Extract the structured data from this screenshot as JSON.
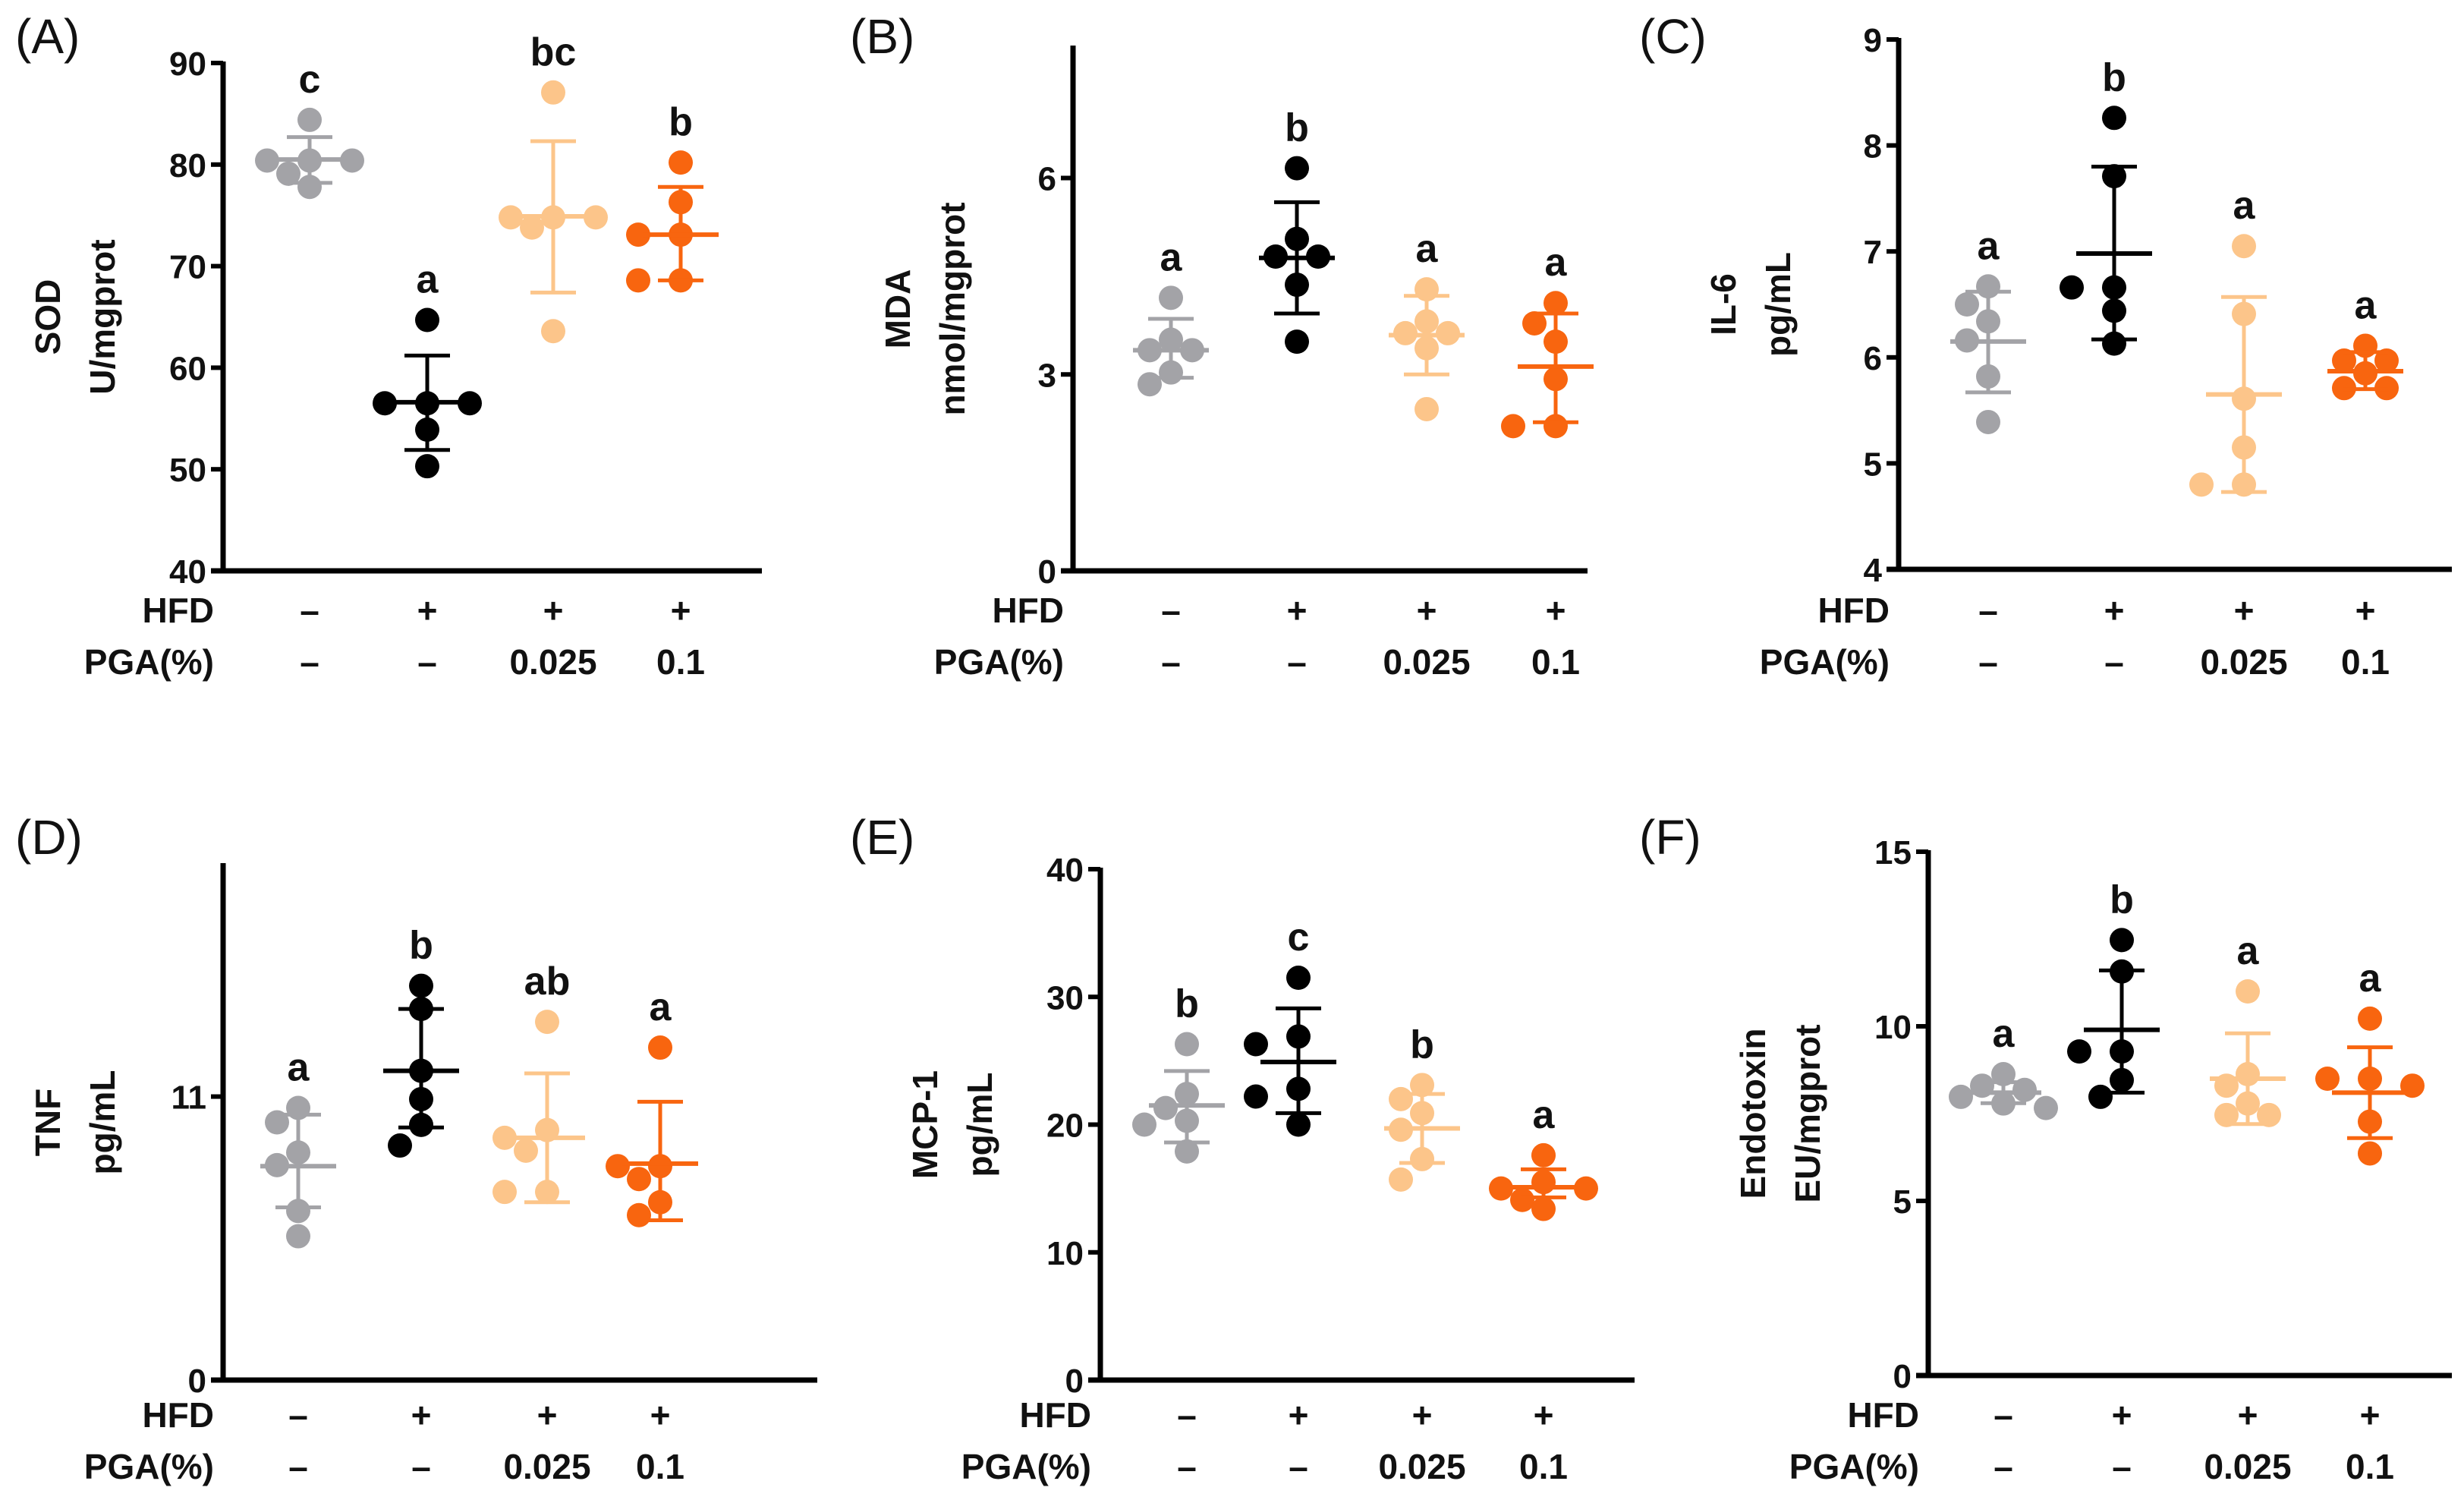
{
  "group_colors": [
    "#a3a3a7",
    "#000000",
    "#fcc58a",
    "#f8650f"
  ],
  "row_labels": {
    "hfd": "HFD",
    "pga": "PGA(%)"
  },
  "hfd_values": [
    "–",
    "+",
    "+",
    "+"
  ],
  "pga_values": [
    "–",
    "–",
    "0.025",
    "0.1"
  ],
  "chart_data": [
    {
      "type": "scatter",
      "panel_label": "(A)",
      "ylabel": [
        "SOD",
        "U/mgprot"
      ],
      "ylim": [
        40,
        90
      ],
      "yticks": [
        40,
        50,
        60,
        70,
        80,
        90
      ],
      "groups": [
        {
          "points": [
            84.4,
            80.4,
            80.4,
            80.4,
            79.1,
            77.8
          ],
          "mean": 80.5,
          "err": [
            78.2,
            82.7
          ],
          "letter": "c"
        },
        {
          "points": [
            64.7,
            56.5,
            56.5,
            56.5,
            53.9,
            50.3
          ],
          "mean": 56.6,
          "err": [
            51.9,
            61.2
          ],
          "letter": "a"
        },
        {
          "points": [
            87.1,
            74.8,
            74.8,
            74.8,
            73.8,
            63.6
          ],
          "mean": 74.9,
          "err": [
            67.4,
            82.3
          ],
          "letter": "bc"
        },
        {
          "points": [
            80.2,
            76.3,
            73.1,
            73.1,
            68.6,
            68.6
          ],
          "mean": 73.1,
          "err": [
            68.6,
            77.8
          ],
          "letter": "b"
        }
      ]
    },
    {
      "type": "scatter",
      "panel_label": "(B)",
      "ylabel": [
        "MDA",
        "nmol/mgprot"
      ],
      "ylim": [
        0,
        8
      ],
      "yticks": [
        0,
        3,
        6
      ],
      "groups": [
        {
          "points": [
            4.17,
            3.53,
            3.37,
            3.37,
            3.03,
            2.85
          ],
          "mean": 3.37,
          "err": [
            2.95,
            3.85
          ],
          "letter": "a"
        },
        {
          "points": [
            6.15,
            5.07,
            4.8,
            4.8,
            4.37,
            3.5
          ],
          "mean": 4.78,
          "err": [
            3.93,
            5.63
          ],
          "letter": "b"
        },
        {
          "points": [
            4.3,
            3.81,
            3.63,
            3.63,
            3.4,
            2.47
          ],
          "mean": 3.6,
          "err": [
            3.0,
            4.2
          ],
          "letter": "a"
        },
        {
          "points": [
            4.09,
            3.78,
            3.5,
            2.93,
            2.21,
            2.21
          ],
          "mean": 3.12,
          "err": [
            2.27,
            3.93
          ],
          "letter": "a"
        }
      ]
    },
    {
      "type": "scatter",
      "panel_label": "(C)",
      "ylabel": [
        "IL-6",
        "pg/mL"
      ],
      "ylim": [
        4,
        9
      ],
      "yticks": [
        4,
        5,
        6,
        7,
        8,
        9
      ],
      "groups": [
        {
          "points": [
            6.67,
            6.5,
            6.34,
            6.16,
            5.82,
            5.39
          ],
          "mean": 6.15,
          "err": [
            5.67,
            6.62
          ],
          "letter": "a"
        },
        {
          "points": [
            8.26,
            7.71,
            6.66,
            6.66,
            6.44,
            6.13
          ],
          "mean": 6.98,
          "err": [
            6.17,
            7.8
          ],
          "letter": "b"
        },
        {
          "points": [
            7.05,
            6.41,
            5.61,
            5.15,
            4.8,
            4.8
          ],
          "mean": 5.65,
          "err": [
            4.73,
            6.57
          ],
          "letter": "a"
        },
        {
          "points": [
            6.11,
            5.97,
            5.97,
            5.85,
            5.71,
            5.71
          ],
          "mean": 5.87,
          "err": [
            5.7,
            6.05
          ],
          "letter": "a"
        }
      ]
    },
    {
      "type": "scatter",
      "panel_label": "(D)",
      "ylabel": [
        "TNF",
        "pg/mL"
      ],
      "ylim": [
        0,
        20
      ],
      "yticks": [
        0,
        11
      ],
      "groups": [
        {
          "points": [
            10.56,
            10.0,
            8.83,
            8.34,
            6.56,
            5.58
          ],
          "mean": 8.3,
          "err": [
            6.7,
            10.3
          ],
          "letter": "a"
        },
        {
          "points": [
            15.3,
            14.4,
            12.0,
            10.9,
            9.9,
            9.1
          ],
          "mean": 12.0,
          "err": [
            9.8,
            14.4
          ],
          "letter": "b"
        },
        {
          "points": [
            13.9,
            9.7,
            9.4,
            8.9,
            7.3,
            7.3
          ],
          "mean": 9.4,
          "err": [
            6.9,
            11.9
          ],
          "letter": "ab"
        },
        {
          "points": [
            12.9,
            8.3,
            8.3,
            7.8,
            6.9,
            6.4
          ],
          "mean": 8.4,
          "err": [
            6.2,
            10.8
          ],
          "letter": "a"
        }
      ]
    },
    {
      "type": "scatter",
      "panel_label": "(E)",
      "ylabel": [
        "MCP-1",
        "pg/mL"
      ],
      "ylim": [
        0,
        40
      ],
      "yticks": [
        0,
        10,
        20,
        30,
        40
      ],
      "groups": [
        {
          "points": [
            26.3,
            22.4,
            21.3,
            20.3,
            20.0,
            17.9
          ],
          "mean": 21.5,
          "err": [
            18.6,
            24.2
          ],
          "letter": "b"
        },
        {
          "points": [
            31.5,
            26.9,
            26.3,
            22.8,
            22.2,
            20.0
          ],
          "mean": 24.9,
          "err": [
            20.9,
            29.1
          ],
          "letter": "c"
        },
        {
          "points": [
            23.1,
            22.0,
            20.9,
            19.6,
            17.3,
            15.7
          ],
          "mean": 19.7,
          "err": [
            17.0,
            22.4
          ],
          "letter": "b"
        },
        {
          "points": [
            17.6,
            15.5,
            15.0,
            15.0,
            14.1,
            13.4
          ],
          "mean": 15.1,
          "err": [
            14.3,
            16.5
          ],
          "letter": "a"
        }
      ]
    },
    {
      "type": "scatter",
      "panel_label": "(F)",
      "ylabel": [
        "Endotoxin",
        "EU/mgprot"
      ],
      "ylim": [
        0,
        15
      ],
      "yticks": [
        0,
        5,
        10,
        15
      ],
      "groups": [
        {
          "points": [
            8.63,
            8.3,
            8.18,
            7.98,
            7.79,
            7.66
          ],
          "mean": 8.1,
          "err": [
            7.8,
            8.4
          ],
          "letter": "a"
        },
        {
          "points": [
            12.47,
            11.57,
            9.28,
            9.28,
            8.46,
            7.98
          ],
          "mean": 9.9,
          "err": [
            8.1,
            11.6
          ],
          "letter": "b"
        },
        {
          "points": [
            11.0,
            8.63,
            8.3,
            7.79,
            7.46,
            7.46
          ],
          "mean": 8.5,
          "err": [
            7.2,
            9.8
          ],
          "letter": "a"
        },
        {
          "points": [
            10.22,
            8.5,
            8.5,
            8.3,
            7.27,
            6.36
          ],
          "mean": 8.1,
          "err": [
            6.8,
            9.4
          ],
          "letter": "a"
        }
      ]
    }
  ]
}
